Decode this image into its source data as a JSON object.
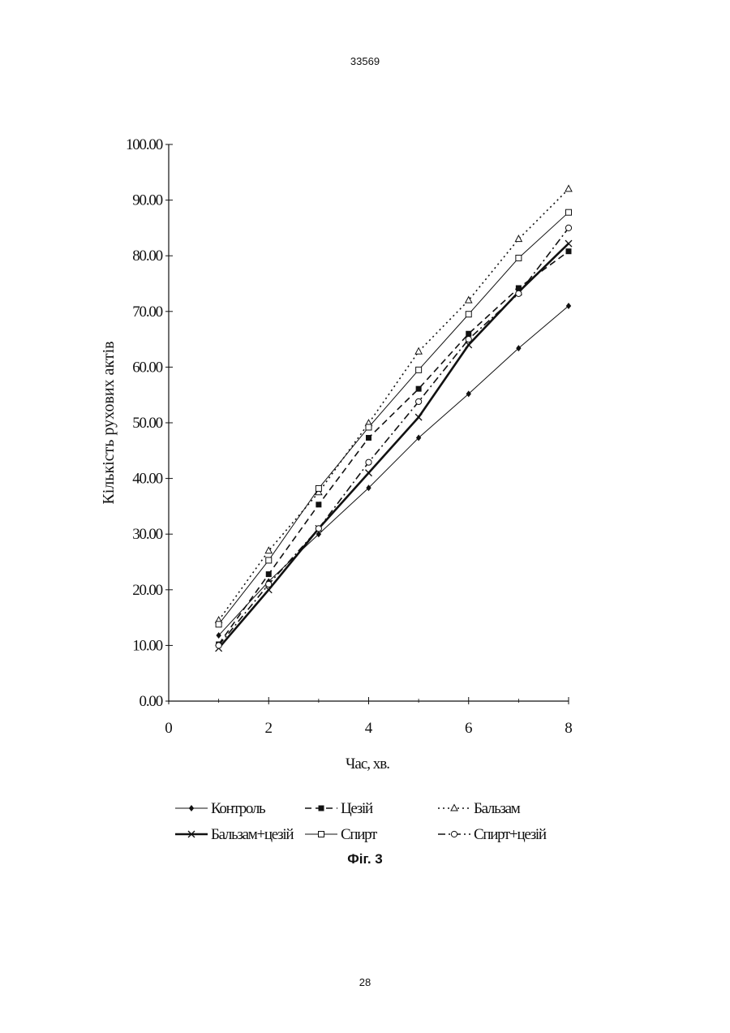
{
  "page": {
    "header_number": "33569",
    "footer_number": "28",
    "figure_caption": "Фіг. 3"
  },
  "chart_data": {
    "type": "line",
    "title": "",
    "xlabel": "Час, хв.",
    "ylabel": "Кількість рухових актів",
    "xlim": [
      0,
      8
    ],
    "ylim": [
      0,
      100
    ],
    "x_ticks": [
      0,
      2,
      4,
      6,
      8
    ],
    "x_tick_labels": [
      "0",
      "2",
      "4",
      "6",
      "8"
    ],
    "y_ticks": [
      0,
      10,
      20,
      30,
      40,
      50,
      60,
      70,
      80,
      90,
      100
    ],
    "y_tick_labels": [
      "0.00",
      "10.00",
      "20.00",
      "30.00",
      "40.00",
      "50.00",
      "60.00",
      "70.00",
      "80.00",
      "90.00",
      "100.00"
    ],
    "grid": false,
    "legend_position": "bottom",
    "x": [
      1,
      2,
      3,
      4,
      5,
      6,
      7,
      8
    ],
    "series": [
      {
        "name": "Контроль",
        "marker": "diamond",
        "dash": "solid",
        "weight": "thin",
        "values": [
          11.8,
          21.5,
          30.0,
          38.3,
          47.3,
          55.2,
          63.4,
          71.0
        ]
      },
      {
        "name": "Цезій",
        "marker": "square-filled",
        "dash": "dashed",
        "weight": "normal",
        "values": [
          10.2,
          22.8,
          35.3,
          47.3,
          56.1,
          66.0,
          74.2,
          80.8
        ]
      },
      {
        "name": "Бальзам",
        "marker": "triangle-open",
        "dash": "dotted",
        "weight": "normal",
        "values": [
          14.5,
          27.0,
          37.5,
          49.9,
          62.8,
          72.0,
          83.0,
          92.0
        ]
      },
      {
        "name": "Бальзам+цезій",
        "marker": "x",
        "dash": "solid",
        "weight": "bold",
        "values": [
          9.5,
          20.0,
          31.0,
          41.0,
          51.0,
          64.0,
          73.5,
          82.2
        ]
      },
      {
        "name": "Спирт",
        "marker": "square-open",
        "dash": "solid",
        "weight": "thin",
        "values": [
          13.8,
          25.3,
          38.2,
          49.2,
          59.5,
          69.5,
          79.6,
          87.8
        ]
      },
      {
        "name": "Спирт+цезій",
        "marker": "circle-open",
        "dash": "dashdot",
        "weight": "normal",
        "values": [
          10.0,
          21.0,
          31.0,
          42.9,
          53.8,
          65.0,
          73.2,
          85.0
        ]
      }
    ]
  }
}
